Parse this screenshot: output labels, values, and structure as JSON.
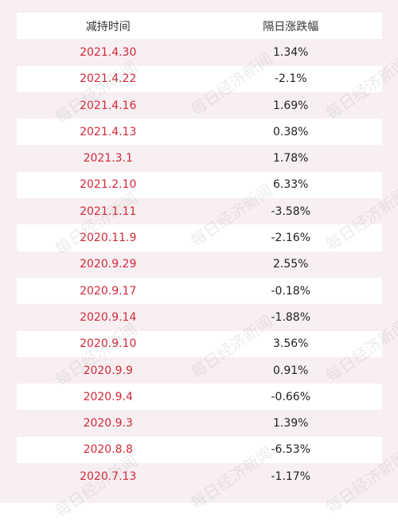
{
  "table": {
    "headers": [
      "减持时间",
      "隔日涨跌幅"
    ],
    "rows": [
      [
        "2021.4.30",
        "1.34%"
      ],
      [
        "2021.4.22",
        "-2.1%"
      ],
      [
        "2021.4.16",
        "1.69%"
      ],
      [
        "2021.4.13",
        "0.38%"
      ],
      [
        "2021.3.1",
        "1.78%"
      ],
      [
        "2021.2.10",
        "6.33%"
      ],
      [
        "2021.1.11",
        "-3.58%"
      ],
      [
        "2020.11.9",
        "-2.16%"
      ],
      [
        "2020.9.29",
        "2.55%"
      ],
      [
        "2020.9.17",
        "-0.18%"
      ],
      [
        "2020.9.14",
        "-1.88%"
      ],
      [
        "2020.9.10",
        "3.56%"
      ],
      [
        "2020.9.9",
        "0.91%"
      ],
      [
        "2020.9.4",
        "-0.66%"
      ],
      [
        "2020.9.3",
        "1.39%"
      ],
      [
        "2020.8.8",
        "-6.53%"
      ],
      [
        "2020.7.13",
        "-1.17%"
      ]
    ]
  },
  "watermark": "每日经济新闻",
  "colors": {
    "date": "#d3293a",
    "text": "#222222",
    "band": "#f7eff1"
  }
}
